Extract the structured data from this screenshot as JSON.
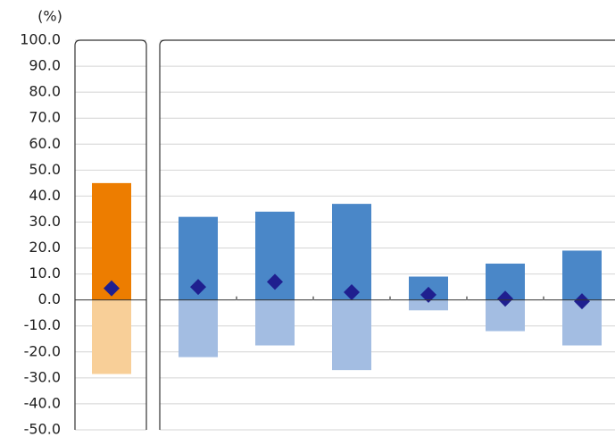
{
  "chart_data": [
    {
      "type": "bar",
      "y_label": "(%)",
      "categories": [
        null
      ],
      "series": [
        {
          "color": "#ed7d00",
          "values": [
            45
          ]
        },
        {
          "color": "#f8cf98",
          "values": [
            -28.5
          ]
        },
        {
          "type": "scatter",
          "color": "#1f1f8f",
          "values": [
            4.5
          ]
        }
      ],
      "ylim": [
        -50,
        100
      ],
      "yticks": [
        {
          "value": 100,
          "label": "100.0"
        },
        {
          "value": 90,
          "label": "90.0"
        },
        {
          "value": 80,
          "label": "80.0"
        },
        {
          "value": 70,
          "label": "70.0"
        },
        {
          "value": 60,
          "label": "60.0"
        },
        {
          "value": 50,
          "label": "50.0"
        },
        {
          "value": 40,
          "label": "40.0"
        },
        {
          "value": 30,
          "label": "30.0"
        },
        {
          "value": 20,
          "label": "20.0"
        },
        {
          "value": 10,
          "label": "10.0"
        },
        {
          "value": 0,
          "label": "0.0"
        },
        {
          "value": -10,
          "label": "-10.0"
        },
        {
          "value": -20,
          "label": "-20.0"
        },
        {
          "value": -30,
          "label": "-30.0"
        },
        {
          "value": -40,
          "label": "-40.0"
        },
        {
          "value": -50,
          "label": "-50.0"
        }
      ],
      "grid": true
    },
    {
      "type": "bar",
      "categories": [
        null,
        null,
        null,
        null,
        null,
        null
      ],
      "series": [
        {
          "color": "#4a87c8",
          "values": [
            32,
            34,
            37,
            9,
            14,
            19
          ]
        },
        {
          "color": "#a3bde2",
          "values": [
            -22,
            -17.5,
            -27,
            -4,
            -12,
            -17.5
          ]
        },
        {
          "type": "scatter",
          "color": "#1f1f8f",
          "values": [
            5,
            7,
            3,
            2,
            0.5,
            -0.5
          ]
        }
      ],
      "ylim": [
        -50,
        100
      ],
      "grid": true
    }
  ]
}
